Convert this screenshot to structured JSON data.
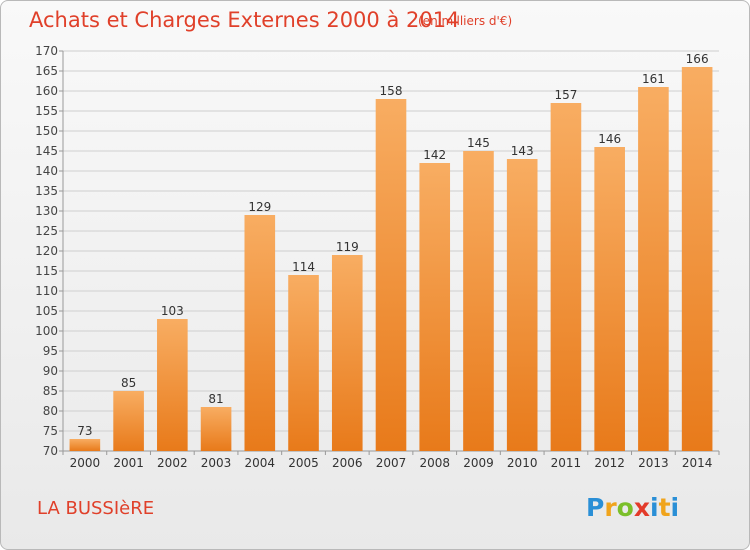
{
  "header": {
    "title": "Achats et Charges Externes 2000 à 2014",
    "unit": "(en milliers d'€)"
  },
  "footer": {
    "place": "LA BUSSIèRE",
    "logo": [
      "P",
      "r",
      "o",
      "x",
      "i",
      "t",
      "i"
    ]
  },
  "colors": {
    "accent": "#e0402a",
    "bar_light": "#f7a85a",
    "bar_dark": "#e97e1e",
    "grid": "#cfcfcf",
    "axis": "#999999"
  },
  "chart_data": {
    "type": "bar",
    "categories": [
      "2000",
      "2001",
      "2002",
      "2003",
      "2004",
      "2005",
      "2006",
      "2007",
      "2008",
      "2009",
      "2010",
      "2011",
      "2012",
      "2013",
      "2014"
    ],
    "values": [
      73,
      85,
      103,
      81,
      129,
      114,
      119,
      158,
      142,
      145,
      143,
      157,
      146,
      161,
      166
    ],
    "value_labels": [
      "73",
      "85",
      "103",
      "81",
      "129",
      "114",
      "119",
      "158",
      "142",
      "145",
      "143",
      "157",
      "146",
      "161",
      "166"
    ],
    "ylim": [
      70,
      170
    ],
    "yticks": [
      "70",
      "75",
      "80",
      "85",
      "90",
      "95",
      "100",
      "105",
      "110",
      "115",
      "120",
      "125",
      "130",
      "135",
      "140",
      "145",
      "150",
      "155",
      "160",
      "165",
      "170"
    ],
    "grid": true
  }
}
